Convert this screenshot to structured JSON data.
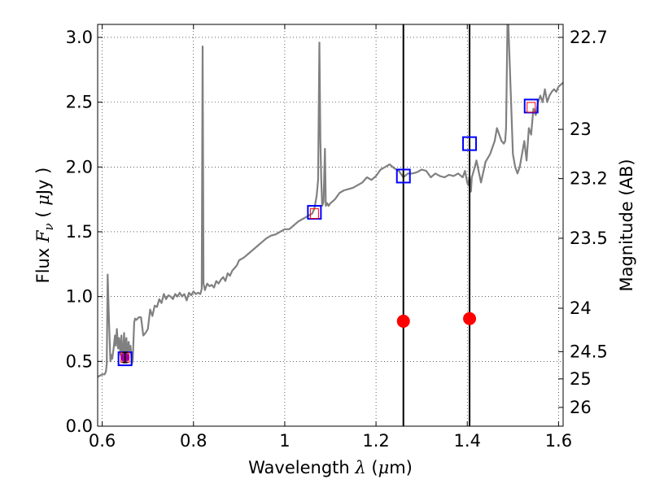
{
  "chart_data": {
    "type": "line",
    "xlabel": {
      "prefix": "Wavelength  ",
      "symbol": "λ",
      "open": " (",
      "unit_mu": "μ",
      "unit_rest": "m)"
    },
    "ylabel": {
      "prefix": "Flux  ",
      "symbol": "F",
      "sub": "ν",
      "open": "  ( ",
      "unit_mu": "μ",
      "unit_rest": "Jy )"
    },
    "y2label": "Magnitude (AB)",
    "xlim": [
      0.59,
      1.61
    ],
    "ylim": [
      0.0,
      3.1
    ],
    "grid": true,
    "x_ticks": [
      0.6,
      0.8,
      1.0,
      1.2,
      1.4,
      1.6
    ],
    "x_tick_labels": [
      "0.6",
      "0.8",
      "1",
      "1.2",
      "1.4",
      "1.6"
    ],
    "y_ticks": [
      0.0,
      0.5,
      1.0,
      1.5,
      2.0,
      2.5,
      3.0
    ],
    "y_tick_labels": [
      "0.0",
      "0.5",
      "1.0",
      "1.5",
      "2.0",
      "2.5",
      "3.0"
    ],
    "mag_ticks": [
      {
        "label": "22.7",
        "flux": 3.0
      },
      {
        "label": "23",
        "flux": 2.29
      },
      {
        "label": "23.2",
        "flux": 1.91
      },
      {
        "label": "23.5",
        "flux": 1.45
      },
      {
        "label": "24",
        "flux": 0.91
      },
      {
        "label": "24.5",
        "flux": 0.575
      },
      {
        "label": "25",
        "flux": 0.365
      },
      {
        "label": "26",
        "flux": 0.145
      }
    ],
    "vertical_lines": [
      1.26,
      1.405
    ],
    "series": [
      {
        "style": "spectrum",
        "color": "#808080",
        "x": [
          0.59,
          0.6,
          0.605,
          0.608,
          0.61,
          0.612,
          0.615,
          0.618,
          0.62,
          0.622,
          0.625,
          0.628,
          0.63,
          0.632,
          0.635,
          0.637,
          0.64,
          0.642,
          0.645,
          0.648,
          0.65,
          0.653,
          0.655,
          0.658,
          0.66,
          0.662,
          0.665,
          0.667,
          0.67,
          0.672,
          0.675,
          0.68,
          0.685,
          0.69,
          0.695,
          0.7,
          0.705,
          0.71,
          0.715,
          0.72,
          0.725,
          0.73,
          0.735,
          0.74,
          0.745,
          0.75,
          0.755,
          0.76,
          0.765,
          0.77,
          0.775,
          0.78,
          0.785,
          0.79,
          0.795,
          0.8,
          0.805,
          0.81,
          0.815,
          0.818,
          0.82,
          0.822,
          0.825,
          0.83,
          0.835,
          0.84,
          0.845,
          0.85,
          0.855,
          0.86,
          0.865,
          0.87,
          0.875,
          0.88,
          0.885,
          0.89,
          0.895,
          0.9,
          0.91,
          0.92,
          0.93,
          0.94,
          0.95,
          0.96,
          0.97,
          0.98,
          0.99,
          1.0,
          1.01,
          1.02,
          1.03,
          1.04,
          1.05,
          1.06,
          1.065,
          1.07,
          1.073,
          1.076,
          1.078,
          1.08,
          1.082,
          1.085,
          1.088,
          1.09,
          1.093,
          1.096,
          1.1,
          1.11,
          1.12,
          1.13,
          1.14,
          1.15,
          1.16,
          1.17,
          1.18,
          1.19,
          1.2,
          1.21,
          1.22,
          1.23,
          1.24,
          1.25,
          1.26,
          1.27,
          1.28,
          1.29,
          1.3,
          1.31,
          1.32,
          1.33,
          1.34,
          1.35,
          1.36,
          1.37,
          1.38,
          1.39,
          1.395,
          1.4,
          1.402,
          1.405,
          1.408,
          1.41,
          1.415,
          1.42,
          1.43,
          1.44,
          1.45,
          1.46,
          1.465,
          1.47,
          1.475,
          1.48,
          1.483,
          1.485,
          1.488,
          1.49,
          1.495,
          1.5,
          1.505,
          1.51,
          1.515,
          1.52,
          1.525,
          1.53,
          1.535,
          1.54,
          1.545,
          1.55,
          1.555,
          1.56,
          1.565,
          1.57,
          1.575,
          1.58,
          1.585,
          1.59,
          1.595,
          1.6,
          1.61
        ],
        "y": [
          0.38,
          0.4,
          0.4,
          0.42,
          0.48,
          1.17,
          0.8,
          0.5,
          0.55,
          0.52,
          0.6,
          0.7,
          0.62,
          0.75,
          0.6,
          0.68,
          0.55,
          0.7,
          0.5,
          0.72,
          0.53,
          0.68,
          0.55,
          0.65,
          0.58,
          0.62,
          0.48,
          0.52,
          0.8,
          0.83,
          0.82,
          0.84,
          0.84,
          0.7,
          0.72,
          0.75,
          0.9,
          0.85,
          0.93,
          0.92,
          0.98,
          0.95,
          1.02,
          0.98,
          1.01,
          1.0,
          0.98,
          1.02,
          1.0,
          1.03,
          1.0,
          1.02,
          0.97,
          1.03,
          1.01,
          1.04,
          1.02,
          1.03,
          1.02,
          1.06,
          2.93,
          1.1,
          1.05,
          1.1,
          1.08,
          1.09,
          1.07,
          1.12,
          1.1,
          1.13,
          1.15,
          1.12,
          1.18,
          1.16,
          1.2,
          1.22,
          1.24,
          1.28,
          1.3,
          1.33,
          1.36,
          1.39,
          1.42,
          1.45,
          1.47,
          1.48,
          1.5,
          1.52,
          1.52,
          1.55,
          1.58,
          1.6,
          1.62,
          1.64,
          1.68,
          1.78,
          1.9,
          2.96,
          2.2,
          1.9,
          1.7,
          1.73,
          2.14,
          1.7,
          1.72,
          1.7,
          1.72,
          1.75,
          1.8,
          1.82,
          1.83,
          1.84,
          1.86,
          1.88,
          1.92,
          1.9,
          1.93,
          1.98,
          2.0,
          2.02,
          1.99,
          1.97,
          1.92,
          1.95,
          1.95,
          1.96,
          1.98,
          1.97,
          1.92,
          1.95,
          1.93,
          1.92,
          1.94,
          1.93,
          1.95,
          1.92,
          1.97,
          1.88,
          1.86,
          1.93,
          1.81,
          1.92,
          1.98,
          2.05,
          1.88,
          2.04,
          2.1,
          2.2,
          2.3,
          2.25,
          2.2,
          2.18,
          2.2,
          2.3,
          3.1,
          3.1,
          2.6,
          2.1,
          2.0,
          1.95,
          2.0,
          2.1,
          2.2,
          2.05,
          2.3,
          2.25,
          2.45,
          2.4,
          2.5,
          2.55,
          2.5,
          2.6,
          2.5,
          2.55,
          2.58,
          2.6,
          2.58,
          2.62,
          2.65
        ]
      },
      {
        "style": "photometry",
        "marker": "open-square",
        "color": "#0000ff",
        "x": [
          0.65,
          1.065,
          1.26,
          1.405,
          1.54
        ],
        "y": [
          0.52,
          1.65,
          1.93,
          2.18,
          2.47
        ]
      },
      {
        "style": "model",
        "marker": "small-square",
        "color": "#ff0000",
        "x": [
          0.65,
          1.065,
          1.54
        ],
        "y": [
          0.53,
          1.64,
          2.46
        ]
      },
      {
        "style": "measured",
        "marker": "filled-circle",
        "color": "#ff0000",
        "x": [
          1.26,
          1.405
        ],
        "y": [
          0.81,
          0.83
        ]
      },
      {
        "style": "measured-errorbar",
        "marker": "filled-circle",
        "color": "#a000a0",
        "x": [
          0.65
        ],
        "y": [
          0.53
        ],
        "err": [
          0.04
        ]
      }
    ]
  }
}
